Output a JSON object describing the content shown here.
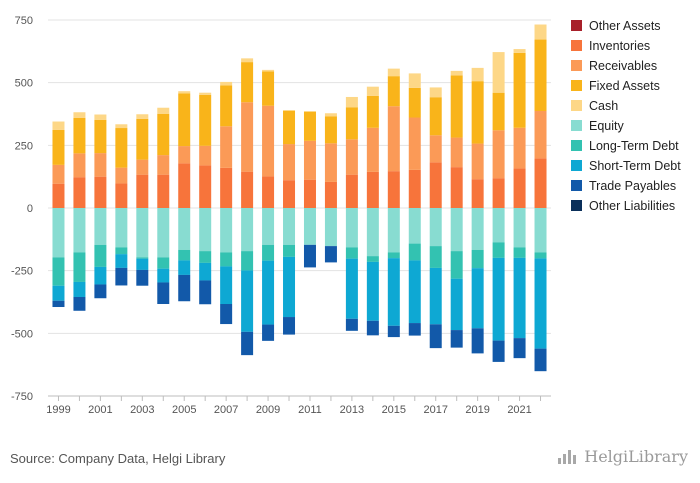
{
  "chart_data": {
    "type": "bar",
    "stacked": true,
    "categories": [
      "1999",
      "2000",
      "2001",
      "2002",
      "2003",
      "2004",
      "2005",
      "2006",
      "2007",
      "2008",
      "2009",
      "2010",
      "2011",
      "2012",
      "2013",
      "2014",
      "2015",
      "2016",
      "2017",
      "2018",
      "2019",
      "2020",
      "2021",
      "2022"
    ],
    "x_tick_labels": [
      "1999",
      "2001",
      "2003",
      "2005",
      "2007",
      "2009",
      "2011",
      "2013",
      "2015",
      "2017",
      "2019",
      "2021"
    ],
    "ylim": [
      -750,
      750
    ],
    "yticks": [
      750,
      500,
      250,
      0,
      -250,
      -500,
      -750
    ],
    "grid": true,
    "legend_position": "right",
    "assets": [
      {
        "name": "Other Assets",
        "color": "#A8202A",
        "values": [
          0,
          0,
          0,
          0,
          0,
          0,
          0,
          0,
          0,
          0,
          0,
          0,
          0,
          0,
          0,
          0,
          0,
          0,
          0,
          0,
          0,
          0,
          0,
          0
        ]
      },
      {
        "name": "Inventories",
        "color": "#F7743B",
        "values": [
          97,
          123,
          125,
          98,
          133,
          133,
          178,
          170,
          160,
          145,
          126,
          111,
          113,
          104,
          133,
          144,
          147,
          152,
          182,
          163,
          115,
          119,
          158,
          198
        ]
      },
      {
        "name": "Receivables",
        "color": "#FB9A57",
        "values": [
          75,
          95,
          94,
          63,
          60,
          78,
          69,
          78,
          166,
          277,
          282,
          144,
          155,
          154,
          141,
          176,
          259,
          209,
          108,
          118,
          142,
          191,
          162,
          189
        ]
      },
      {
        "name": "Fixed Assets",
        "color": "#F9B41A",
        "values": [
          140,
          142,
          133,
          158,
          163,
          165,
          210,
          203,
          163,
          160,
          137,
          134,
          117,
          107,
          128,
          127,
          120,
          118,
          152,
          248,
          249,
          150,
          299,
          285
        ]
      },
      {
        "name": "Cash",
        "color": "#FDD787",
        "values": [
          33,
          22,
          21,
          15,
          18,
          24,
          9,
          9,
          14,
          15,
          6,
          0,
          0,
          13,
          41,
          37,
          30,
          58,
          39,
          18,
          53,
          162,
          15,
          60
        ]
      }
    ],
    "liabilities": [
      {
        "name": "Equity",
        "color": "#88DCD1",
        "values": [
          -197,
          -177,
          -147,
          -157,
          -197,
          -197,
          -167,
          -172,
          -177,
          -172,
          -147,
          -147,
          -147,
          -152,
          -157,
          -192,
          -177,
          -142,
          -152,
          -172,
          -167,
          -137,
          -157,
          -177
        ]
      },
      {
        "name": "Long-Term Debt",
        "color": "#33C2B1",
        "values": [
          -113,
          -118,
          -88,
          -27,
          -5,
          -45,
          -42,
          -47,
          -56,
          -77,
          -63,
          -48,
          0,
          0,
          -45,
          -23,
          -23,
          -67,
          -87,
          -110,
          -73,
          -62,
          -42,
          -24
        ]
      },
      {
        "name": "Short-Term Debt",
        "color": "#0EA8D3",
        "values": [
          -60,
          -60,
          -70,
          -55,
          -45,
          -55,
          -58,
          -70,
          -150,
          -245,
          -255,
          -240,
          0,
          0,
          -240,
          -235,
          -270,
          -250,
          -225,
          -205,
          -240,
          -330,
          -320,
          -360
        ]
      },
      {
        "name": "Trade Payables",
        "color": "#1259A9",
        "values": [
          -25,
          -55,
          -55,
          -70,
          -63,
          -86,
          -105,
          -95,
          -80,
          -93,
          -65,
          -70,
          -90,
          -65,
          -48,
          -58,
          -45,
          -50,
          -95,
          -70,
          -100,
          -85,
          -80,
          -90
        ]
      },
      {
        "name": "Other Liabilities",
        "color": "#0A2F5A",
        "values": [
          0,
          0,
          0,
          0,
          0,
          0,
          0,
          0,
          0,
          0,
          0,
          0,
          0,
          0,
          0,
          0,
          0,
          0,
          0,
          0,
          0,
          0,
          0,
          0
        ]
      }
    ]
  },
  "footer": {
    "source": "Source: Company Data, Helgi Library",
    "brand": "HelgiLibrary"
  }
}
